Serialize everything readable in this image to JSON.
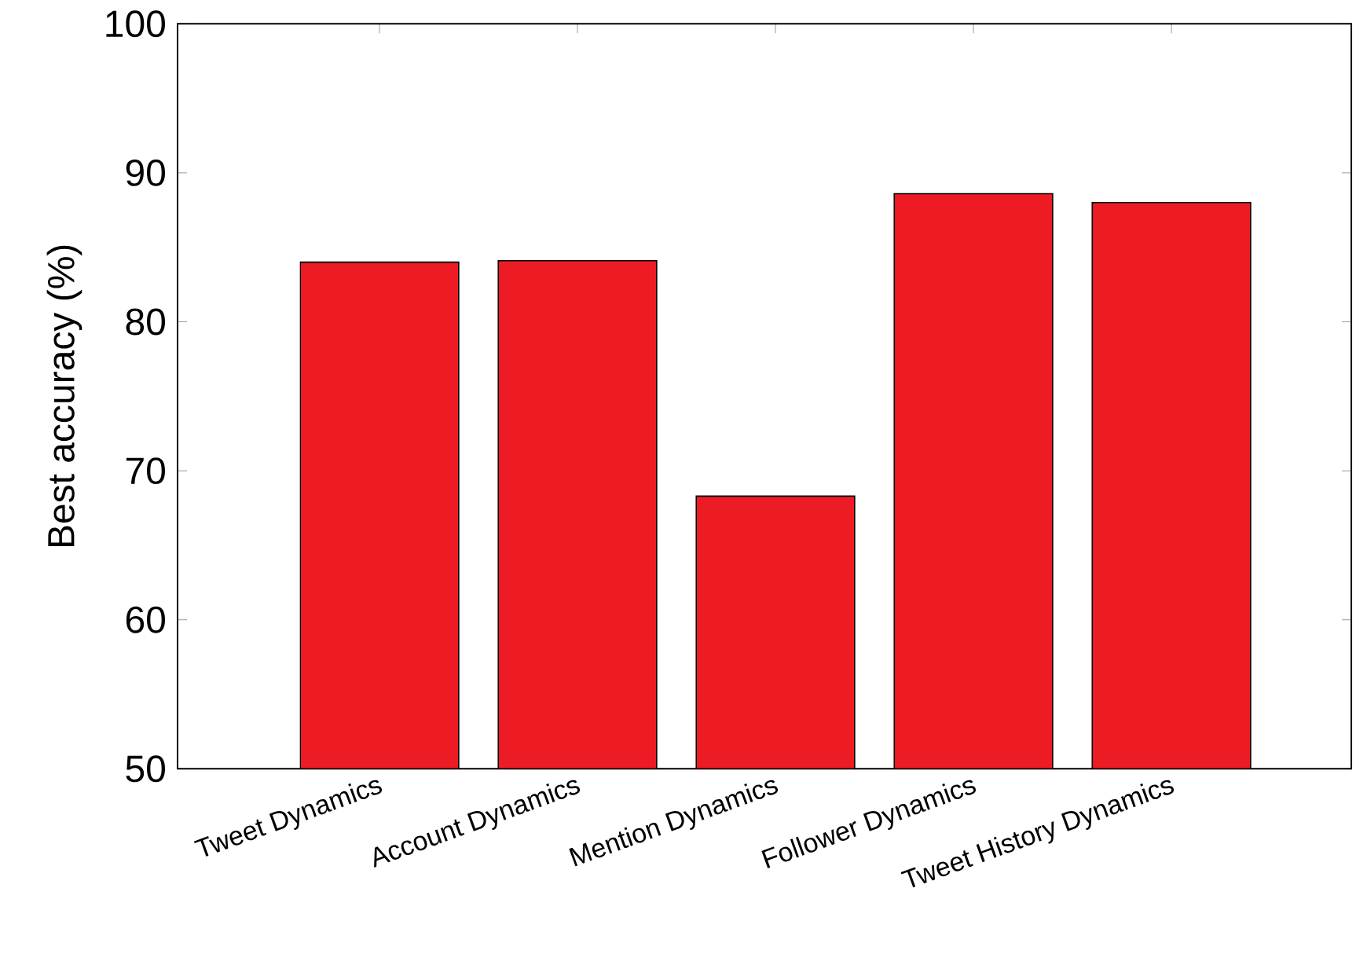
{
  "chart_data": {
    "type": "bar",
    "ylabel": "Best accuracy (%)",
    "categories": [
      "Tweet Dynamics",
      "Account Dynamics",
      "Mention Dynamics",
      "Follower Dynamics",
      "Tweet History Dynamics"
    ],
    "values": [
      84.0,
      84.1,
      68.3,
      88.6,
      88.0
    ],
    "color": "#ed1c24",
    "ylim": [
      50,
      100
    ],
    "yticks": [
      50,
      60,
      70,
      80,
      90,
      100
    ],
    "grid": false
  }
}
